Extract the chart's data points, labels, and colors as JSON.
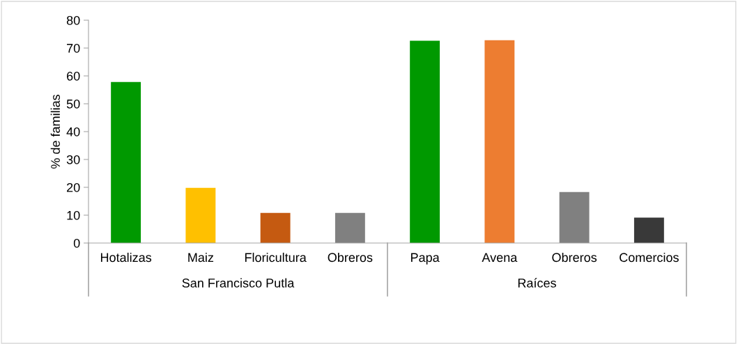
{
  "chart_data": {
    "type": "bar",
    "ylabel": "% de familias",
    "categories": [
      "Hotalizas",
      "Maiz",
      "Floricultura",
      "Obreros",
      "Papa",
      "Avena",
      "Obreros",
      "Comercios"
    ],
    "values": [
      57.8,
      19.8,
      10.8,
      10.8,
      72.6,
      72.8,
      18.3,
      9.1
    ],
    "colors": [
      "#009900",
      "#ffc000",
      "#c55a11",
      "#808080",
      "#009900",
      "#ed7d31",
      "#808080",
      "#393939"
    ],
    "ylim": [
      0,
      80
    ],
    "yticks": [
      0,
      10,
      20,
      30,
      40,
      50,
      60,
      70,
      80
    ],
    "grid": false,
    "legend": false,
    "annotations": [
      "San Francisco Putla",
      "Raíces"
    ]
  }
}
